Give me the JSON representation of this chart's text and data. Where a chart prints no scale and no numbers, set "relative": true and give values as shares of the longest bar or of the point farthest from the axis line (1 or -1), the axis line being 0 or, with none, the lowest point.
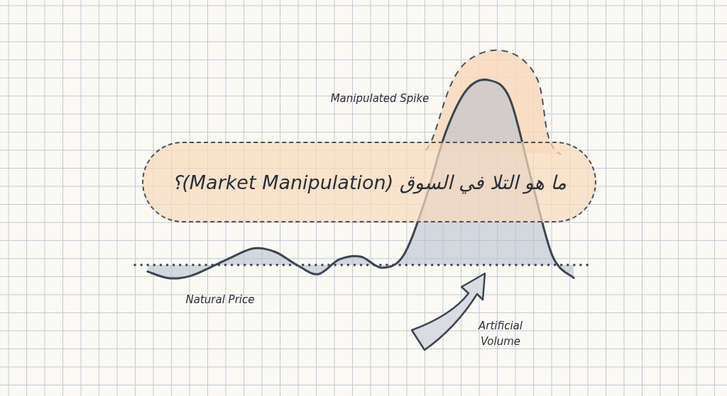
{
  "chart_data": {
    "type": "area",
    "relative": true,
    "grid": true,
    "title": "ما هو التلا في السوق (Market Manipulation)؟",
    "categories": [
      null,
      null,
      null,
      null,
      null,
      null,
      null,
      null,
      null,
      null,
      null,
      null,
      null,
      null,
      null,
      null,
      null,
      null,
      null,
      null,
      null
    ],
    "series": [
      {
        "color": "#3d4550",
        "values": [
          -0.036,
          -0.072,
          -0.06,
          -0.01,
          0.045,
          0.09,
          0.07,
          0.0,
          -0.05,
          0.03,
          0.045,
          -0.015,
          0.05,
          0.34,
          0.72,
          0.95,
          1,
          0.9,
          0.47,
          0.05,
          -0.07
        ]
      }
    ],
    "ref_lines": [
      {
        "axis": "y",
        "value": 0,
        "line_style": "dotted",
        "color": "#3d4550"
      }
    ],
    "annotations": [
      "Manipulated Spike",
      "Natural Price",
      "Artificial Volume"
    ]
  }
}
